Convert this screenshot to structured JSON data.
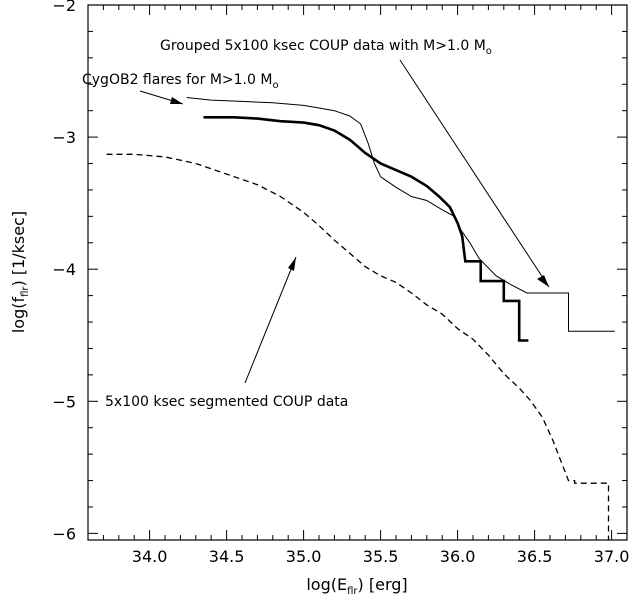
{
  "chart_data": {
    "type": "line",
    "xlabel": {
      "main": "log(E",
      "sub": "flr",
      "tail": ") [erg]"
    },
    "ylabel": {
      "main": "log(f",
      "sub": "flr",
      "tail": ") [1/ksec]"
    },
    "xlim": [
      33.6,
      37.1
    ],
    "ylim": [
      -6.05,
      -2.0
    ],
    "xticks": [
      34.0,
      34.5,
      35.0,
      35.5,
      36.0,
      36.5,
      37.0
    ],
    "xtick_labels": [
      "34.0",
      "34.5",
      "35.0",
      "35.5",
      "36.0",
      "36.5",
      "37.0"
    ],
    "yticks": [
      -2,
      -3,
      -4,
      -5,
      -6
    ],
    "ytick_labels": [
      "−2",
      "−3",
      "−4",
      "−5",
      "−6"
    ],
    "grid": false,
    "series": [
      {
        "style": "thin",
        "points": [
          [
            34.24,
            -2.7
          ],
          [
            34.4,
            -2.72
          ],
          [
            34.6,
            -2.73
          ],
          [
            34.8,
            -2.74
          ],
          [
            35.0,
            -2.76
          ],
          [
            35.1,
            -2.78
          ],
          [
            35.2,
            -2.8
          ],
          [
            35.3,
            -2.84
          ],
          [
            35.37,
            -2.9
          ],
          [
            35.42,
            -3.05
          ],
          [
            35.46,
            -3.2
          ],
          [
            35.5,
            -3.3
          ],
          [
            35.6,
            -3.38
          ],
          [
            35.7,
            -3.45
          ],
          [
            35.8,
            -3.48
          ],
          [
            35.9,
            -3.55
          ],
          [
            35.98,
            -3.6
          ],
          [
            36.02,
            -3.7
          ],
          [
            36.08,
            -3.8
          ],
          [
            36.14,
            -3.92
          ],
          [
            36.25,
            -4.05
          ],
          [
            36.35,
            -4.12
          ],
          [
            36.45,
            -4.18
          ],
          [
            36.72,
            -4.18
          ],
          [
            36.72,
            -4.47
          ],
          [
            37.02,
            -4.47
          ]
        ]
      },
      {
        "style": "thick",
        "points": [
          [
            34.35,
            -2.85
          ],
          [
            34.55,
            -2.85
          ],
          [
            34.7,
            -2.86
          ],
          [
            34.85,
            -2.88
          ],
          [
            35.0,
            -2.89
          ],
          [
            35.1,
            -2.91
          ],
          [
            35.2,
            -2.95
          ],
          [
            35.3,
            -3.02
          ],
          [
            35.4,
            -3.12
          ],
          [
            35.5,
            -3.2
          ],
          [
            35.6,
            -3.25
          ],
          [
            35.7,
            -3.3
          ],
          [
            35.8,
            -3.37
          ],
          [
            35.88,
            -3.45
          ],
          [
            35.95,
            -3.53
          ],
          [
            36.0,
            -3.65
          ],
          [
            36.03,
            -3.75
          ],
          [
            36.05,
            -3.94
          ],
          [
            36.15,
            -3.94
          ],
          [
            36.15,
            -4.09
          ],
          [
            36.3,
            -4.09
          ],
          [
            36.3,
            -4.24
          ],
          [
            36.4,
            -4.24
          ],
          [
            36.4,
            -4.54
          ],
          [
            36.46,
            -4.54
          ]
        ]
      },
      {
        "style": "dashed",
        "points": [
          [
            33.72,
            -3.13
          ],
          [
            33.9,
            -3.13
          ],
          [
            34.1,
            -3.15
          ],
          [
            34.3,
            -3.2
          ],
          [
            34.5,
            -3.28
          ],
          [
            34.7,
            -3.36
          ],
          [
            34.85,
            -3.45
          ],
          [
            35.0,
            -3.57
          ],
          [
            35.1,
            -3.67
          ],
          [
            35.2,
            -3.78
          ],
          [
            35.3,
            -3.88
          ],
          [
            35.4,
            -3.98
          ],
          [
            35.5,
            -4.05
          ],
          [
            35.6,
            -4.1
          ],
          [
            35.7,
            -4.18
          ],
          [
            35.8,
            -4.27
          ],
          [
            35.9,
            -4.34
          ],
          [
            36.0,
            -4.45
          ],
          [
            36.1,
            -4.53
          ],
          [
            36.2,
            -4.65
          ],
          [
            36.3,
            -4.79
          ],
          [
            36.4,
            -4.9
          ],
          [
            36.47,
            -4.99
          ],
          [
            36.55,
            -5.12
          ],
          [
            36.62,
            -5.3
          ],
          [
            36.66,
            -5.42
          ],
          [
            36.72,
            -5.6
          ],
          [
            36.76,
            -5.6
          ],
          [
            36.76,
            -5.62
          ],
          [
            36.98,
            -5.62
          ],
          [
            36.98,
            -6.05
          ]
        ]
      }
    ],
    "annotations": [
      {
        "id": "grouped",
        "text": "Grouped 5x100 ksec COUP data with M>1.0 M",
        "sub": "o"
      },
      {
        "id": "cygob2",
        "text": "CygOB2 flares for M>1.0 M",
        "sub": "o"
      },
      {
        "id": "segmented",
        "text": "5x100 ksec segmented COUP data",
        "sub": ""
      }
    ]
  }
}
